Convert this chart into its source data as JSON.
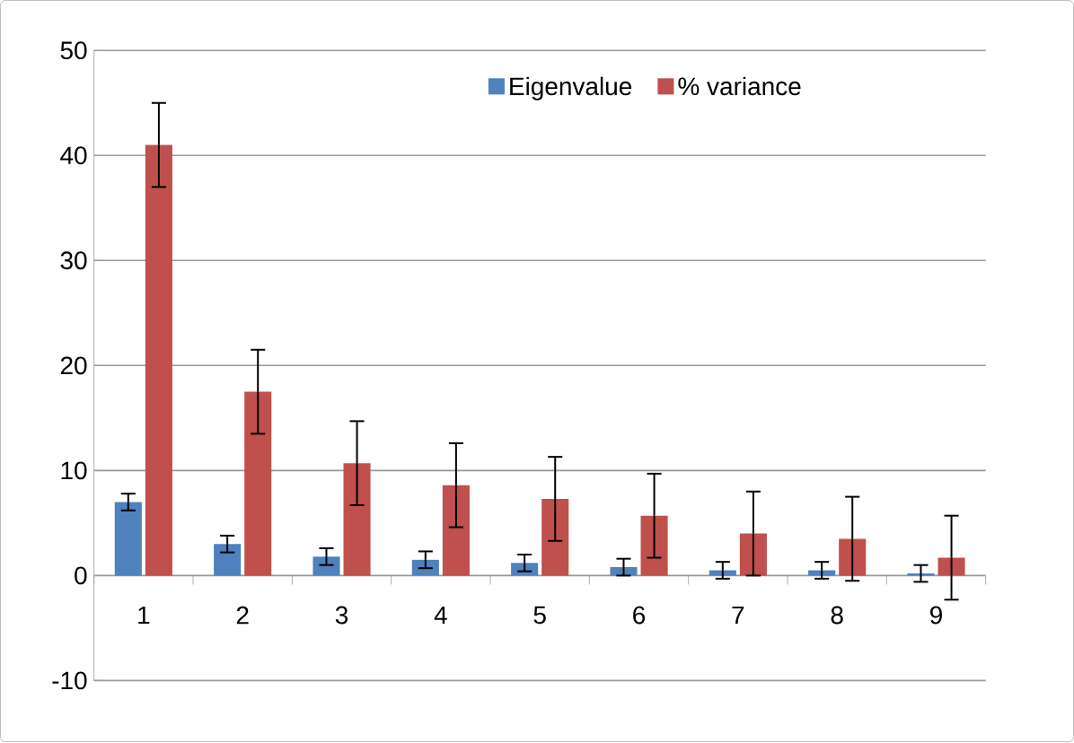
{
  "chart_data": {
    "type": "bar",
    "categories": [
      "1",
      "2",
      "3",
      "4",
      "5",
      "6",
      "7",
      "8",
      "9"
    ],
    "series": [
      {
        "name": "Eigenvalue",
        "color": "#4f81bd",
        "values": [
          7.0,
          3.0,
          1.8,
          1.5,
          1.2,
          0.8,
          0.5,
          0.5,
          0.2
        ],
        "errors": [
          0.8,
          0.8,
          0.8,
          0.8,
          0.8,
          0.8,
          0.8,
          0.8,
          0.8
        ]
      },
      {
        "name": "% variance",
        "color": "#c0504d",
        "values": [
          41,
          17.5,
          10.7,
          8.6,
          7.3,
          5.7,
          4.0,
          3.5,
          1.7
        ],
        "errors": [
          4,
          4,
          4,
          4,
          4,
          4,
          4,
          4,
          4
        ]
      }
    ],
    "ylim": [
      -10,
      50
    ],
    "yticks": [
      -10,
      0,
      10,
      20,
      30,
      40,
      50
    ],
    "grid": "y",
    "legend": "top"
  }
}
